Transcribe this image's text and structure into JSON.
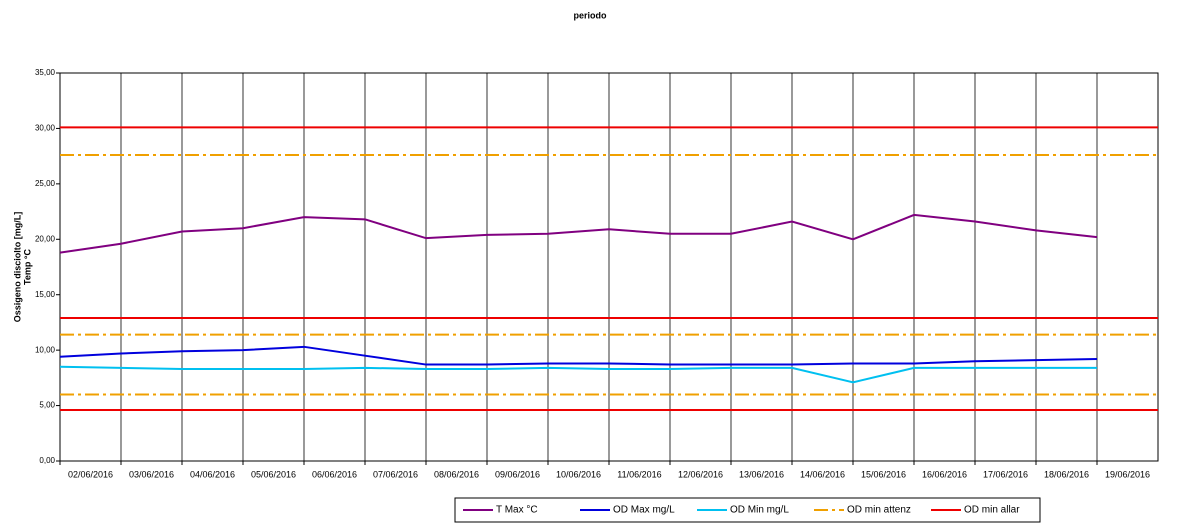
{
  "chart_data": {
    "type": "line",
    "title": "periodo",
    "y_label": [
      "Ossigeno disciolto [mg/L]",
      "Temp °C"
    ],
    "categories": [
      "02/06/2016",
      "03/06/2016",
      "04/06/2016",
      "05/06/2016",
      "06/06/2016",
      "07/06/2016",
      "08/06/2016",
      "09/06/2016",
      "10/06/2016",
      "11/06/2016",
      "12/06/2016",
      "13/06/2016",
      "14/06/2016",
      "15/06/2016",
      "16/06/2016",
      "17/06/2016",
      "18/06/2016",
      "19/06/2016"
    ],
    "series": [
      {
        "name": "T Max °C",
        "color": "#800080",
        "values": [
          18.8,
          19.6,
          20.7,
          21.0,
          22.0,
          21.8,
          20.1,
          20.4,
          20.5,
          20.9,
          20.5,
          20.5,
          21.6,
          20.0,
          22.2,
          21.6,
          20.8,
          20.2
        ]
      },
      {
        "name": "OD Max mg/L",
        "color": "#0000dd",
        "values": [
          9.4,
          9.7,
          9.9,
          10.0,
          10.3,
          9.5,
          8.7,
          8.7,
          8.8,
          8.8,
          8.7,
          8.7,
          8.7,
          8.8,
          8.8,
          9.0,
          9.1,
          9.2
        ]
      },
      {
        "name": "OD  Min mg/L",
        "color": "#00c0f0",
        "values": [
          8.5,
          8.4,
          8.3,
          8.3,
          8.3,
          8.4,
          8.3,
          8.3,
          8.4,
          8.3,
          8.3,
          8.4,
          8.4,
          7.1,
          8.4,
          8.4,
          8.4,
          8.4
        ]
      },
      {
        "name": "OD min attenz",
        "color": "#f0a000",
        "dash": true,
        "levels": [
          27.6,
          11.4,
          6.0
        ]
      },
      {
        "name": "OD min allar",
        "color": "#ee0000",
        "levels": [
          30.1,
          12.9,
          4.6
        ]
      }
    ],
    "ylim": [
      0,
      35
    ],
    "yticks": [
      {
        "value": 0,
        "label": "0,00"
      },
      {
        "value": 5,
        "label": "5,00"
      },
      {
        "value": 10,
        "label": "10,00"
      },
      {
        "value": 15,
        "label": "15,00"
      },
      {
        "value": 20,
        "label": "20,00"
      },
      {
        "value": 25,
        "label": "25,00"
      },
      {
        "value": 30,
        "label": "30,00"
      },
      {
        "value": 35,
        "label": "35,00"
      }
    ],
    "grid": true
  }
}
